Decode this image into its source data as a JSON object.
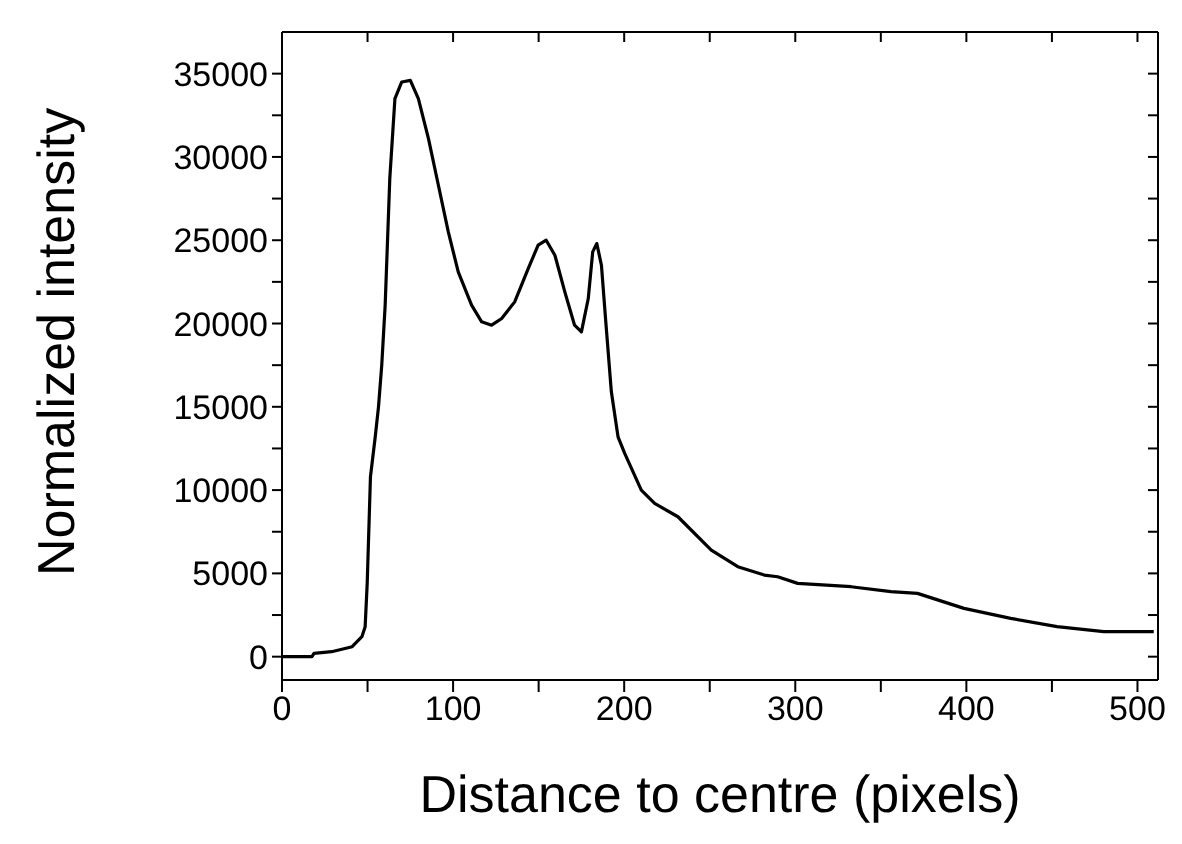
{
  "chart_data": {
    "type": "line",
    "xlabel": "Distance to centre (pixels)",
    "ylabel": "Normalized intensity",
    "xlim": [
      0,
      512
    ],
    "ylim": [
      -1400,
      37500
    ],
    "xticks": [
      0,
      {
        "value": 50,
        "label": null
      },
      100,
      {
        "value": 150,
        "label": null
      },
      200,
      {
        "value": 250,
        "label": null
      },
      300,
      {
        "value": 350,
        "label": null
      },
      400,
      {
        "value": 450,
        "label": null
      },
      500
    ],
    "yticks": [
      0,
      {
        "value": 2500,
        "label": null
      },
      5000,
      {
        "value": 7500,
        "label": null
      },
      10000,
      {
        "value": 12500,
        "label": null
      },
      15000,
      {
        "value": 17500,
        "label": null
      },
      20000,
      {
        "value": 22500,
        "label": null
      },
      25000,
      {
        "value": 27500,
        "label": null
      },
      30000,
      {
        "value": 32500,
        "label": null
      },
      35000
    ],
    "legend": false,
    "marker": "none",
    "line_style": "solid",
    "series": [
      {
        "color": "#000000",
        "x": [
          0,
          17.5,
          18.7,
          29,
          41,
          46.7,
          48.6,
          49.8,
          51.7,
          54.5,
          56.4,
          58.3,
          60.3,
          63,
          66,
          70,
          75,
          79.7,
          85.6,
          91.4,
          97.2,
          103,
          110.8,
          116.7,
          122.5,
          128.4,
          136,
          143.9,
          149.7,
          154.4,
          159.5,
          165.3,
          171,
          175,
          179,
          181.6,
          184,
          186.7,
          189.4,
          192.5,
          196.4,
          200.3,
          210,
          217.8,
          231.4,
          250.9,
          266.4,
          281.9,
          289.7,
          301.4,
          332.6,
          355.9,
          371.4,
          398.6,
          425.9,
          453,
          480.3,
          509.5
        ],
        "values": [
          0,
          0,
          200,
          300,
          600,
          1200,
          1800,
          4400,
          10800,
          13200,
          15000,
          17500,
          21100,
          28700,
          33500,
          34500,
          34600,
          33500,
          31100,
          28300,
          25500,
          23100,
          21100,
          20100,
          19900,
          20300,
          21300,
          23300,
          24700,
          25000,
          24100,
          21900,
          19900,
          19500,
          21500,
          24300,
          24800,
          23500,
          19900,
          15900,
          13200,
          12200,
          10000,
          9200,
          8400,
          6400,
          5400,
          4900,
          4800,
          4400,
          4200,
          3900,
          3800,
          2900,
          2300,
          1800,
          1500,
          1500
        ]
      }
    ]
  }
}
